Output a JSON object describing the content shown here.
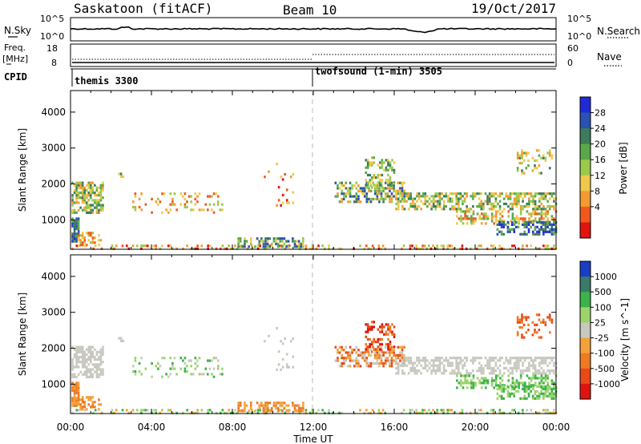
{
  "header": {
    "title": "Saskatoon (fitACF)",
    "beam": "Beam 10",
    "date": "19/Oct/2017"
  },
  "strip1": {
    "left_label": "N.Sky",
    "right_label": "N.Search",
    "left_ticks": [
      "10^5",
      "10^0"
    ],
    "right_ticks": [
      "10^5",
      "10^0"
    ]
  },
  "strip2": {
    "left_label_1": "Freq.",
    "left_label_2": "[MHz]",
    "right_label": "Nave",
    "left_ticks": [
      "18",
      "8"
    ],
    "right_ticks": [
      "60",
      "0"
    ]
  },
  "cpid": {
    "label": "CPID",
    "segments": [
      {
        "name": "themis 3300",
        "start_hour": 0
      },
      {
        "name": "twofsound (1-min) 3505",
        "start_hour": 12
      }
    ]
  },
  "x_axis": {
    "label": "Time UT",
    "ticks": [
      "00:00",
      "04:00",
      "08:00",
      "12:00",
      "16:00",
      "20:00",
      "00:00"
    ]
  },
  "chart_data": [
    {
      "type": "heatmap",
      "title": "",
      "ylabel": "Slant Range [km]",
      "xlabel": "",
      "ylim": [
        180,
        4600
      ],
      "xlim": [
        0,
        24
      ],
      "y_ticks": [
        "1000",
        "2000",
        "3000",
        "4000"
      ],
      "y_tick_values": [
        1000,
        2000,
        3000,
        4000
      ],
      "colorbar": {
        "label": "Power [dB]",
        "ticks": [
          "4",
          "8",
          "12",
          "16",
          "20",
          "24",
          "28"
        ],
        "colors": [
          "#1f2bd6",
          "#2a52b0",
          "#3e7b5a",
          "#5aa84a",
          "#9ac94c",
          "#f0c84a",
          "#f39a31",
          "#ef5a1c",
          "#e1140f"
        ]
      }
    },
    {
      "type": "heatmap",
      "title": "",
      "ylabel": "Slant Range [km]",
      "xlabel": "Time UT",
      "ylim": [
        180,
        4600
      ],
      "xlim": [
        0,
        24
      ],
      "y_ticks": [
        "1000",
        "2000",
        "3000",
        "4000"
      ],
      "y_tick_values": [
        1000,
        2000,
        3000,
        4000
      ],
      "colorbar": {
        "label": "Velocity [m s^-1]",
        "ticks": [
          "1000",
          "500",
          "100",
          "25",
          "-25",
          "-100",
          "-500",
          "-1000"
        ],
        "colors": [
          "#1a3fc4",
          "#3a7a6a",
          "#3cb24a",
          "#9cd46a",
          "#c8c8c0",
          "#f3a13a",
          "#ee7a22",
          "#e84a18",
          "#e0140f"
        ]
      }
    }
  ]
}
